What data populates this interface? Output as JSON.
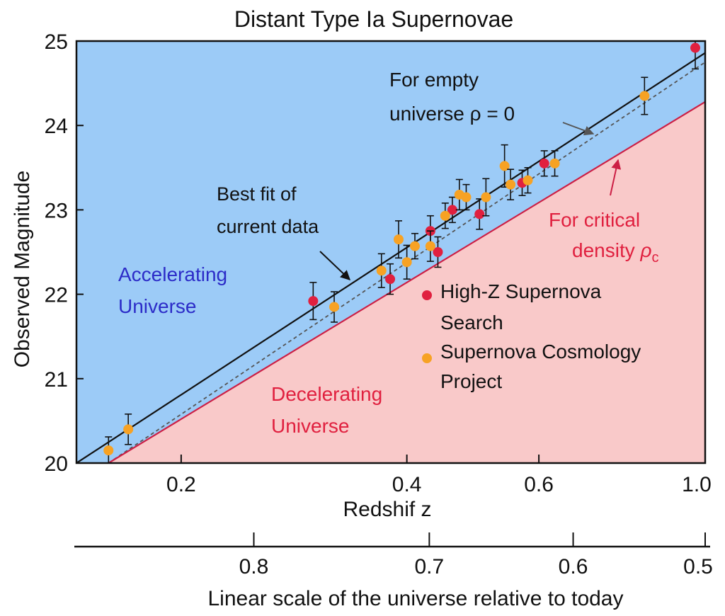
{
  "chart_data": {
    "type": "scatter",
    "title": "Distant Type Ia Supernovae",
    "xlabel": "Redshif z",
    "ylabel": "Observed Magnitude",
    "x_scale": "log",
    "xlim": [
      0.145,
      1.0
    ],
    "ylim": [
      20,
      25
    ],
    "x_ticks": [
      0.2,
      0.4,
      0.6,
      1.0
    ],
    "x_tick_labels": [
      "0.2",
      "0.4",
      "0.6",
      "1.0"
    ],
    "y_ticks": [
      20,
      21,
      22,
      23,
      24,
      25
    ],
    "y_tick_labels": [
      "20",
      "21",
      "22",
      "23",
      "24",
      "25"
    ],
    "secondary_axis": {
      "label": "Linear scale of the universe relative to today",
      "ticks": [
        0.8,
        0.7,
        0.6,
        0.5
      ],
      "tick_labels": [
        "0.8",
        "0.7",
        "0.6",
        "0.5"
      ]
    },
    "regions": [
      {
        "label": "Accelerating Universe",
        "lines": [
          "Accelerating",
          "Universe"
        ],
        "color": "#9ccbf7"
      },
      {
        "label": "Decelerating Universe",
        "lines": [
          "Decelerating",
          "Universe"
        ],
        "color": "#f9c9c9"
      }
    ],
    "lines": [
      {
        "label": "Best fit of current data",
        "lines": [
          "Best fit of",
          "current data"
        ],
        "color": "#111111",
        "style": "solid",
        "points": [
          [
            0.145,
            20.0
          ],
          [
            1.0,
            24.86
          ]
        ]
      },
      {
        "label": "For empty universe ρ = 0",
        "lines": [
          "For empty",
          "universe ρ = 0"
        ],
        "color": "#555555",
        "style": "dashed",
        "points": [
          [
            0.16,
            20.0
          ],
          [
            1.0,
            24.75
          ]
        ]
      },
      {
        "label": "For critical density ρc",
        "lines": [
          "For critical",
          "density ρc"
        ],
        "color": "#cc1f45",
        "style": "solid",
        "points": [
          [
            0.16,
            20.0
          ],
          [
            1.0,
            24.28
          ]
        ]
      }
    ],
    "series": [
      {
        "name": "High-Z Supernova Search",
        "legend_lines": [
          "High-Z Supernova",
          "Search"
        ],
        "color": "#e0203f",
        "points": [
          {
            "x": 0.3,
            "y": 21.92,
            "err": 0.22
          },
          {
            "x": 0.38,
            "y": 22.18,
            "err": 0.18
          },
          {
            "x": 0.43,
            "y": 22.75,
            "err": 0.18
          },
          {
            "x": 0.44,
            "y": 22.5,
            "err": 0.18
          },
          {
            "x": 0.46,
            "y": 23.0,
            "err": 0.15
          },
          {
            "x": 0.5,
            "y": 22.95,
            "err": 0.18
          },
          {
            "x": 0.57,
            "y": 23.32,
            "err": 0.15
          },
          {
            "x": 0.61,
            "y": 23.55,
            "err": 0.15
          },
          {
            "x": 0.97,
            "y": 24.92,
            "err": 0.25
          }
        ]
      },
      {
        "name": "Supernova Cosmology Project",
        "legend_lines": [
          "Supernova Cosmology",
          "Project"
        ],
        "color": "#f7a224",
        "points": [
          {
            "x": 0.16,
            "y": 20.15,
            "err": 0.16
          },
          {
            "x": 0.17,
            "y": 20.4,
            "err": 0.18
          },
          {
            "x": 0.32,
            "y": 21.85,
            "err": 0.18
          },
          {
            "x": 0.37,
            "y": 22.28,
            "err": 0.2
          },
          {
            "x": 0.39,
            "y": 22.65,
            "err": 0.22
          },
          {
            "x": 0.4,
            "y": 22.38,
            "err": 0.2
          },
          {
            "x": 0.41,
            "y": 22.57,
            "err": 0.15
          },
          {
            "x": 0.43,
            "y": 22.57,
            "err": 0.18
          },
          {
            "x": 0.45,
            "y": 22.93,
            "err": 0.15
          },
          {
            "x": 0.47,
            "y": 23.18,
            "err": 0.18
          },
          {
            "x": 0.48,
            "y": 23.15,
            "err": 0.15
          },
          {
            "x": 0.51,
            "y": 23.15,
            "err": 0.22
          },
          {
            "x": 0.54,
            "y": 23.52,
            "err": 0.25
          },
          {
            "x": 0.55,
            "y": 23.3,
            "err": 0.18
          },
          {
            "x": 0.58,
            "y": 23.35,
            "err": 0.15
          },
          {
            "x": 0.63,
            "y": 23.55,
            "err": 0.15
          },
          {
            "x": 0.83,
            "y": 24.35,
            "err": 0.22
          }
        ]
      }
    ]
  }
}
